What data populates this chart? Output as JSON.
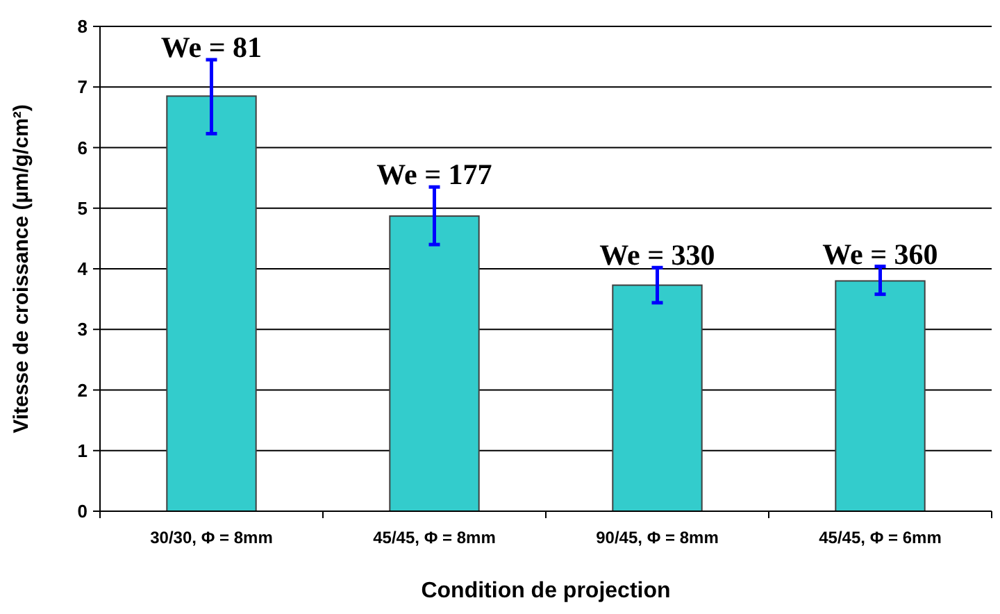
{
  "chart_data": {
    "type": "bar",
    "xlabel": "Condition de projection",
    "ylabel": "Vitesse de croissance (µm/g/cm²)",
    "categories": [
      "30/30, Φ = 8mm",
      "45/45, Φ = 8mm",
      "90/45, Φ = 8mm",
      "45/45, Φ = 6mm"
    ],
    "values": [
      6.85,
      4.87,
      3.73,
      3.8
    ],
    "color": "#33cccc",
    "errors": [
      [
        6.23,
        7.45
      ],
      [
        4.4,
        5.35
      ],
      [
        3.44,
        4.02
      ],
      [
        3.58,
        4.04
      ]
    ],
    "ylim": [
      0,
      8
    ],
    "yticks": [
      0,
      1,
      2,
      3,
      4,
      5,
      6,
      7,
      8
    ],
    "grid": "y",
    "annotations": [
      {
        "text": "We = 81",
        "x": "30/30, Φ = 8mm",
        "y": 7.45
      },
      {
        "text": "We = 177",
        "x": "45/45, Φ = 8mm",
        "y": 5.35
      },
      {
        "text": "We = 330",
        "x": "90/45, Φ = 8mm",
        "y": 4.02
      },
      {
        "text": "We = 360",
        "x": "45/45, Φ = 6mm",
        "y": 4.04
      }
    ]
  }
}
